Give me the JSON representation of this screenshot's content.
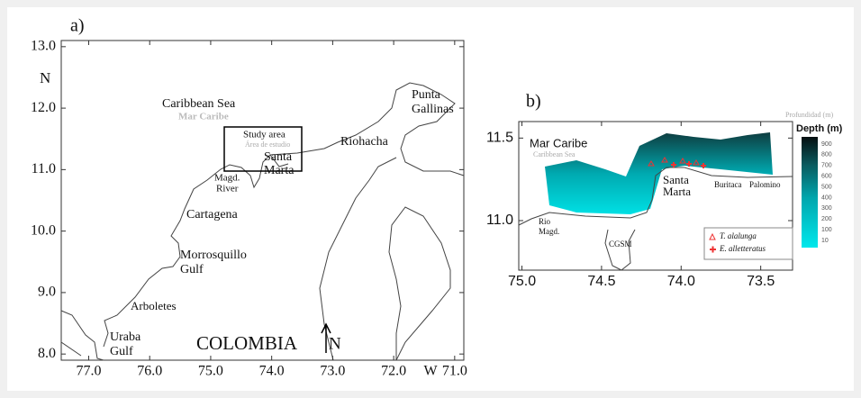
{
  "panel_a": {
    "label": "a)",
    "y_axis_label": "N",
    "x_axis_label": "W",
    "ylim": [
      7.9,
      13.1
    ],
    "xlim": [
      77.45,
      70.85
    ],
    "yticks": [
      {
        "value": 13,
        "label": "13.0"
      },
      {
        "value": 12,
        "label": "12.0"
      },
      {
        "value": 11,
        "label": "11.0"
      },
      {
        "value": 10,
        "label": "10.0"
      },
      {
        "value": 9,
        "label": "9.0"
      },
      {
        "value": 8,
        "label": "8.0"
      }
    ],
    "xticks": [
      {
        "value": 77,
        "label": "77.0"
      },
      {
        "value": 76,
        "label": "76.0"
      },
      {
        "value": 75,
        "label": "75.0"
      },
      {
        "value": 74,
        "label": "74.0"
      },
      {
        "value": 73,
        "label": "73.0"
      },
      {
        "value": 72,
        "label": "72.0"
      },
      {
        "value": 71,
        "label": "71.0"
      }
    ],
    "places": {
      "caribbean_sea": "Caribbean Sea",
      "mar_caribe": "Mar Caribe",
      "study_area": "Study area",
      "area_de_estudio": "Área de estudio",
      "punta_gallinas": [
        "Punta",
        "Gallinas"
      ],
      "riohacha": "Riohacha",
      "santa_marta": [
        "Santa",
        "Marta"
      ],
      "magd_river": [
        "Magd.",
        "River"
      ],
      "cartagena": "Cartagena",
      "morrosquillo_gulf": [
        "Morrosquillo",
        "Gulf"
      ],
      "arboletes": "Arboletes",
      "uraba_gulf": [
        "Uraba",
        "Gulf"
      ],
      "colombia": "COLOMBIA"
    },
    "north_arrow": "N"
  },
  "panel_b": {
    "label": "b)",
    "profundidad": "Profundidad (m)",
    "ylim": [
      10.7,
      11.6
    ],
    "xlim": [
      75.02,
      73.3
    ],
    "yticks": [
      {
        "value": 11.5,
        "label": "11.5"
      },
      {
        "value": 11,
        "label": "11.0"
      }
    ],
    "xticks": [
      {
        "value": 75,
        "label": "75.0"
      },
      {
        "value": 74.5,
        "label": "74.5"
      },
      {
        "value": 74,
        "label": "74.0"
      },
      {
        "value": 73.5,
        "label": "73.5"
      }
    ],
    "places": {
      "mar_caribe": "Mar Caribe",
      "caribbean_sea": "Caribbean Sea",
      "santa_marta": [
        "Santa",
        "Marta"
      ],
      "buritaca": "Buritaca",
      "palomino": "Palomino",
      "rio_magd": [
        "Rio",
        "Magd."
      ],
      "cgsm": "CGSM"
    },
    "legend": [
      "T. alalunga",
      "E. alletteratus"
    ],
    "colorbar": {
      "title": "Depth (m)",
      "ticks": [
        900,
        800,
        700,
        600,
        500,
        400,
        300,
        200,
        100,
        10
      ]
    }
  }
}
